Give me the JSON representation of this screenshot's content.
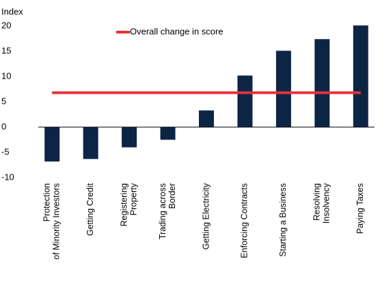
{
  "chart_data": {
    "type": "bar",
    "ylabel": "Index",
    "categories": [
      [
        "Protection",
        "of Minority Investors"
      ],
      [
        "Getting Credit"
      ],
      [
        "Registering",
        "Property"
      ],
      [
        "Trading across",
        "Border"
      ],
      [
        "Getting Electricity"
      ],
      [
        "Enforcing Contracts"
      ],
      [
        "Starting a Business"
      ],
      [
        "Resolving",
        "Insolvency"
      ],
      [
        "Paying Taxes"
      ]
    ],
    "values": [
      -6.8,
      -6.3,
      -4,
      -2.5,
      3.3,
      10.2,
      15.1,
      17.4,
      20.1
    ],
    "color": "#0d2545",
    "overlay": {
      "type": "line",
      "name": "Overall change in score",
      "color": "#e8303a",
      "values": [
        6.8,
        6.8,
        6.8,
        6.8,
        6.8,
        6.8,
        6.8,
        6.8,
        6.8
      ]
    },
    "ylim": [
      -10,
      20
    ],
    "yticks": [
      -10,
      -5,
      0,
      5,
      10,
      15,
      20
    ]
  }
}
